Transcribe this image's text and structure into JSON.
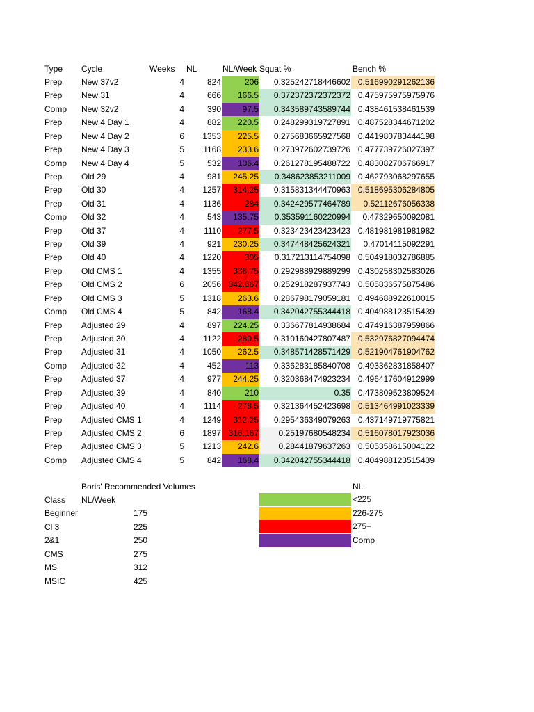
{
  "colors": {
    "green": "#92d050",
    "yellow": "#ffc000",
    "red": "#ff0000",
    "purple": "#7030a0",
    "mint": "#c6e9d7",
    "peach": "#fde3b4",
    "gray": "#f2f2f2",
    "none": "transparent"
  },
  "headers": {
    "type": "Type",
    "cycle": "Cycle",
    "weeks": "Weeks",
    "nl": "NL",
    "nlw": "NL/Week",
    "squat": "Squat %",
    "bench": "Bench %"
  },
  "rows": [
    {
      "type": "Prep",
      "cycle": "New 37v2",
      "weeks": "4",
      "nl": "824",
      "nlw": "206",
      "squat": "0.325242718446602",
      "bench": "0.516990291262136",
      "nlw_fill": "green",
      "squat_fill": "none",
      "bench_fill": "peach"
    },
    {
      "type": "Prep",
      "cycle": "New 31",
      "weeks": "4",
      "nl": "666",
      "nlw": "166.5",
      "squat": "0.372372372372372",
      "bench": "0.475975975975976",
      "nlw_fill": "green",
      "squat_fill": "mint",
      "bench_fill": "none"
    },
    {
      "type": "Comp",
      "cycle": "New 32v2",
      "weeks": "4",
      "nl": "390",
      "nlw": "97.5",
      "squat": "0.343589743589744",
      "bench": "0.438461538461539",
      "nlw_fill": "purple",
      "squat_fill": "mint",
      "bench_fill": "none"
    },
    {
      "type": "Prep",
      "cycle": "New 4 Day 1",
      "weeks": "4",
      "nl": "882",
      "nlw": "220.5",
      "squat": "0.248299319727891",
      "bench": "0.487528344671202",
      "nlw_fill": "green",
      "squat_fill": "none",
      "bench_fill": "none"
    },
    {
      "type": "Prep",
      "cycle": "New 4 Day 2",
      "weeks": "6",
      "nl": "1353",
      "nlw": "225.5",
      "squat": "0.275683665927568",
      "bench": "0.441980783444198",
      "nlw_fill": "yellow",
      "squat_fill": "none",
      "bench_fill": "none"
    },
    {
      "type": "Prep",
      "cycle": "New 4 Day 3",
      "weeks": "5",
      "nl": "1168",
      "nlw": "233.6",
      "squat": "0.273972602739726",
      "bench": "0.477739726027397",
      "nlw_fill": "yellow",
      "squat_fill": "none",
      "bench_fill": "none"
    },
    {
      "type": "Comp",
      "cycle": "New 4 Day 4",
      "weeks": "5",
      "nl": "532",
      "nlw": "106.4",
      "squat": "0.261278195488722",
      "bench": "0.483082706766917",
      "nlw_fill": "purple",
      "squat_fill": "none",
      "bench_fill": "none"
    },
    {
      "type": "Prep",
      "cycle": "Old 29",
      "weeks": "4",
      "nl": "981",
      "nlw": "245.25",
      "squat": "0.348623853211009",
      "bench": "0.462793068297655",
      "nlw_fill": "yellow",
      "squat_fill": "mint",
      "bench_fill": "none"
    },
    {
      "type": "Prep",
      "cycle": "Old 30",
      "weeks": "4",
      "nl": "1257",
      "nlw": "314.25",
      "squat": "0.315831344470963",
      "bench": "0.518695306284805",
      "nlw_fill": "red",
      "squat_fill": "none",
      "bench_fill": "peach"
    },
    {
      "type": "Prep",
      "cycle": "Old 31",
      "weeks": "4",
      "nl": "1136",
      "nlw": "284",
      "squat": "0.342429577464789",
      "bench": "0.52112676056338",
      "nlw_fill": "red",
      "squat_fill": "mint",
      "bench_fill": "peach"
    },
    {
      "type": "Comp",
      "cycle": "Old 32",
      "weeks": "4",
      "nl": "543",
      "nlw": "135.75",
      "squat": "0.353591160220994",
      "bench": "0.47329650092081",
      "nlw_fill": "purple",
      "squat_fill": "mint",
      "bench_fill": "none"
    },
    {
      "type": "Prep",
      "cycle": "Old 37",
      "weeks": "4",
      "nl": "1110",
      "nlw": "277.5",
      "squat": "0.323423423423423",
      "bench": "0.481981981981982",
      "nlw_fill": "red",
      "squat_fill": "none",
      "bench_fill": "none"
    },
    {
      "type": "Prep",
      "cycle": "Old 39",
      "weeks": "4",
      "nl": "921",
      "nlw": "230.25",
      "squat": "0.347448425624321",
      "bench": "0.47014115092291",
      "nlw_fill": "yellow",
      "squat_fill": "mint",
      "bench_fill": "none"
    },
    {
      "type": "Prep",
      "cycle": "Old 40",
      "weeks": "4",
      "nl": "1220",
      "nlw": "305",
      "squat": "0.317213114754098",
      "bench": "0.504918032786885",
      "nlw_fill": "red",
      "squat_fill": "none",
      "bench_fill": "none"
    },
    {
      "type": "Prep",
      "cycle": "Old CMS 1",
      "weeks": "4",
      "nl": "1355",
      "nlw": "338.75",
      "squat": "0.292988929889299",
      "bench": "0.430258302583026",
      "nlw_fill": "red",
      "squat_fill": "none",
      "bench_fill": "none"
    },
    {
      "type": "Prep",
      "cycle": "Old CMS 2",
      "weeks": "6",
      "nl": "2056",
      "nlw": "342.667",
      "squat": "0.252918287937743",
      "bench": "0.505836575875486",
      "nlw_fill": "red",
      "squat_fill": "none",
      "bench_fill": "none"
    },
    {
      "type": "Prep",
      "cycle": "Old CMS 3",
      "weeks": "5",
      "nl": "1318",
      "nlw": "263.6",
      "squat": "0.286798179059181",
      "bench": "0.494688922610015",
      "nlw_fill": "yellow",
      "squat_fill": "none",
      "bench_fill": "none"
    },
    {
      "type": "Comp",
      "cycle": "Old CMS 4",
      "weeks": "5",
      "nl": "842",
      "nlw": "168.4",
      "squat": "0.342042755344418",
      "bench": "0.404988123515439",
      "nlw_fill": "purple",
      "squat_fill": "mint",
      "bench_fill": "none"
    },
    {
      "type": "Prep",
      "cycle": "Adjusted 29",
      "weeks": "4",
      "nl": "897",
      "nlw": "224.25",
      "squat": "0.336677814938684",
      "bench": "0.474916387959866",
      "nlw_fill": "green",
      "squat_fill": "none",
      "bench_fill": "none"
    },
    {
      "type": "Prep",
      "cycle": "Adjusted 30",
      "weeks": "4",
      "nl": "1122",
      "nlw": "280.5",
      "squat": "0.310160427807487",
      "bench": "0.532976827094474",
      "nlw_fill": "red",
      "squat_fill": "none",
      "bench_fill": "peach"
    },
    {
      "type": "Prep",
      "cycle": "Adjusted 31",
      "weeks": "4",
      "nl": "1050",
      "nlw": "262.5",
      "squat": "0.348571428571429",
      "bench": "0.521904761904762",
      "nlw_fill": "yellow",
      "squat_fill": "mint",
      "bench_fill": "peach"
    },
    {
      "type": "Comp",
      "cycle": "Adjusted 32",
      "weeks": "4",
      "nl": "452",
      "nlw": "113",
      "squat": "0.336283185840708",
      "bench": "0.493362831858407",
      "nlw_fill": "purple",
      "squat_fill": "none",
      "bench_fill": "none"
    },
    {
      "type": "Prep",
      "cycle": "Adjusted 37",
      "weeks": "4",
      "nl": "977",
      "nlw": "244.25",
      "squat": "0.320368474923234",
      "bench": "0.496417604912999",
      "nlw_fill": "yellow",
      "squat_fill": "none",
      "bench_fill": "none"
    },
    {
      "type": "Prep",
      "cycle": "Adjusted 39",
      "weeks": "4",
      "nl": "840",
      "nlw": "210",
      "squat": "0.35",
      "bench": "0.473809523809524",
      "nlw_fill": "green",
      "squat_fill": "mint",
      "bench_fill": "none"
    },
    {
      "type": "Prep",
      "cycle": "Adjusted 40",
      "weeks": "4",
      "nl": "1114",
      "nlw": "278.5",
      "squat": "0.321364452423698",
      "bench": "0.513464991023339",
      "nlw_fill": "red",
      "squat_fill": "none",
      "bench_fill": "peach"
    },
    {
      "type": "Prep",
      "cycle": "Adjusted CMS 1",
      "weeks": "4",
      "nl": "1249",
      "nlw": "312.25",
      "squat": "0.295436349079263",
      "bench": "0.437149719775821",
      "nlw_fill": "red",
      "squat_fill": "none",
      "bench_fill": "none"
    },
    {
      "type": "Prep",
      "cycle": "Adjusted CMS 2",
      "weeks": "6",
      "nl": "1897",
      "nlw": "316.167",
      "squat": "0.25197680548234",
      "bench": "0.516078017923036",
      "nlw_fill": "red",
      "squat_fill": "gray",
      "bench_fill": "peach"
    },
    {
      "type": "Prep",
      "cycle": "Adjusted CMS 3",
      "weeks": "5",
      "nl": "1213",
      "nlw": "242.6",
      "squat": "0.28441879637263",
      "bench": "0.505358615004122",
      "nlw_fill": "yellow",
      "squat_fill": "gray",
      "bench_fill": "none"
    },
    {
      "type": "Comp",
      "cycle": "Adjusted CMS 4",
      "weeks": "5",
      "nl": "842",
      "nlw": "168.4",
      "squat": "0.342042755344418",
      "bench": "0.404988123515439",
      "nlw_fill": "purple",
      "squat_fill": "mint",
      "bench_fill": "none"
    }
  ],
  "recommended": {
    "title": "Boris' Recommended Volumes",
    "class_header": "Class",
    "nlw_header": "NL/Week",
    "items": [
      {
        "class": "Beginner",
        "value": "175"
      },
      {
        "class": "Cl 3",
        "value": "225"
      },
      {
        "class": "2&1",
        "value": "250"
      },
      {
        "class": "CMS",
        "value": "275"
      },
      {
        "class": "MS",
        "value": "312"
      },
      {
        "class": "MSIC",
        "value": "425"
      }
    ]
  },
  "legend": {
    "title": "NL",
    "items": [
      {
        "label": "<225",
        "fill": "green"
      },
      {
        "label": "226-275",
        "fill": "yellow"
      },
      {
        "label": "275+",
        "fill": "red"
      },
      {
        "label": "Comp",
        "fill": "purple"
      }
    ]
  }
}
